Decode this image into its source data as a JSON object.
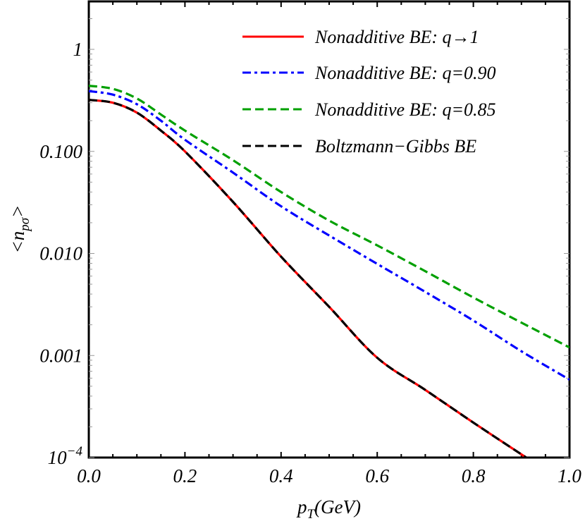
{
  "chart_data": {
    "type": "line",
    "title": "",
    "xlabel": "p_T(GeV)",
    "xlabel_main": "p",
    "xlabel_sub": "T",
    "xlabel_suffix": "(GeV)",
    "ylabel": "<n_pσ>",
    "ylabel_prefix": "<n",
    "ylabel_sub": "pσ",
    "ylabel_suffix": ">",
    "xscale": "linear",
    "yscale": "log",
    "xlim": [
      0.0,
      1.0
    ],
    "ylim": [
      0.0001,
      2.95
    ],
    "x_ticks": [
      "0.0",
      "0.2",
      "0.4",
      "0.6",
      "0.8",
      "1.0"
    ],
    "y_ticks": [
      {
        "value": 1,
        "label": "1"
      },
      {
        "value": 0.1,
        "label": "0.100"
      },
      {
        "value": 0.01,
        "label": "0.010"
      },
      {
        "value": 0.001,
        "label": "0.001"
      },
      {
        "value": 0.0001,
        "label": "10",
        "exponent": "−4"
      }
    ],
    "grid": false,
    "legend_position": "upper right (inside)",
    "series": [
      {
        "name": "Nonadditive BE: q→1",
        "color": "#ff0000",
        "dash": "solid",
        "x": [
          0.0,
          0.05,
          0.1,
          0.15,
          0.2,
          0.3,
          0.4,
          0.5,
          0.6,
          0.7,
          0.8,
          0.91
        ],
        "values": [
          0.32,
          0.3,
          0.24,
          0.16,
          0.1,
          0.032,
          0.0093,
          0.003,
          0.00095,
          0.00046,
          0.00022,
          0.0001
        ]
      },
      {
        "name": "Nonadditive BE: q=0.90",
        "color": "#0000ff",
        "dash": "dashdot",
        "x": [
          0.0,
          0.05,
          0.1,
          0.15,
          0.2,
          0.3,
          0.4,
          0.5,
          0.6,
          0.7,
          0.8,
          0.9,
          1.0
        ],
        "values": [
          0.39,
          0.36,
          0.29,
          0.2,
          0.13,
          0.062,
          0.029,
          0.015,
          0.0079,
          0.0042,
          0.0022,
          0.0011,
          0.00058
        ]
      },
      {
        "name": "Nonadditive BE: q=0.85",
        "color": "#00a000",
        "dash": "dashed",
        "x": [
          0.0,
          0.05,
          0.1,
          0.15,
          0.2,
          0.3,
          0.4,
          0.5,
          0.6,
          0.7,
          0.8,
          0.9,
          1.0
        ],
        "values": [
          0.44,
          0.41,
          0.33,
          0.23,
          0.16,
          0.082,
          0.04,
          0.021,
          0.012,
          0.0067,
          0.0037,
          0.0021,
          0.0012
        ]
      },
      {
        "name": "Boltzmann−Gibbs BE",
        "color": "#000000",
        "dash": "dashed",
        "x": [
          0.0,
          0.05,
          0.1,
          0.15,
          0.2,
          0.3,
          0.4,
          0.5,
          0.6,
          0.7,
          0.8,
          0.91
        ],
        "values": [
          0.32,
          0.3,
          0.24,
          0.16,
          0.1,
          0.032,
          0.0093,
          0.003,
          0.00095,
          0.00046,
          0.00022,
          0.0001
        ]
      }
    ]
  },
  "legend": {
    "items": [
      {
        "label": "Nonadditive BE: q→1",
        "color": "#ff0000"
      },
      {
        "label": "Nonadditive BE: q=0.90",
        "color": "#0000ff"
      },
      {
        "label": "Nonadditive BE: q=0.85",
        "color": "#00a000"
      },
      {
        "label": "Boltzmann−Gibbs BE",
        "color": "#000000"
      }
    ]
  }
}
